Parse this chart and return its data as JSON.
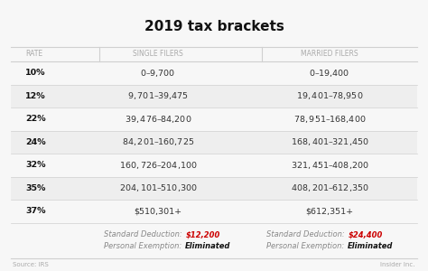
{
  "title": "2019 tax brackets",
  "col_headers": [
    "RATE",
    "SINGLE FILERS",
    "MARRIED FILERS"
  ],
  "rows": [
    [
      "10%",
      "$0 – $9,700",
      "$0 – $19,400"
    ],
    [
      "12%",
      "$9,701 – $39,475",
      "$19,401 – $78,950"
    ],
    [
      "22%",
      "$39,476 – $84,200",
      "$78,951 – $168,400"
    ],
    [
      "24%",
      "$84,201 – $160,725",
      "$168,401 – $321,450"
    ],
    [
      "32%",
      "$160,726 – $204,100",
      "$321,451 – $408,200"
    ],
    [
      "35%",
      "$204,101 – $510,300",
      "$408,201 – $612,350"
    ],
    [
      "37%",
      "$510,301+",
      "$612,351+"
    ]
  ],
  "footer_single_label1": "Standard Deduction: ",
  "footer_single_val1": "$12,200",
  "footer_single_label2": "Personal Exemption: ",
  "footer_single_val2": "Eliminated",
  "footer_married_label1": "Standard Deduction: ",
  "footer_married_val1": "$24,400",
  "footer_married_label2": "Personal Exemption: ",
  "footer_married_val2": "Eliminated",
  "source_left": "Source: IRS",
  "source_right": "Insider Inc.",
  "bg_color": "#f7f7f7",
  "line_color": "#d0d0d0",
  "header_text_color": "#aaaaaa",
  "rate_bold_color": "#111111",
  "data_text_color": "#333333",
  "footer_label_color": "#888888",
  "footer_value_red": "#cc0000",
  "footer_bold_color": "#111111",
  "source_color": "#aaaaaa",
  "title_color": "#111111",
  "row_shade_color": "#eeeeee",
  "title_fontsize": 11,
  "header_fontsize": 5.5,
  "data_fontsize": 6.8,
  "footer_fontsize": 6.0,
  "source_fontsize": 5.0
}
